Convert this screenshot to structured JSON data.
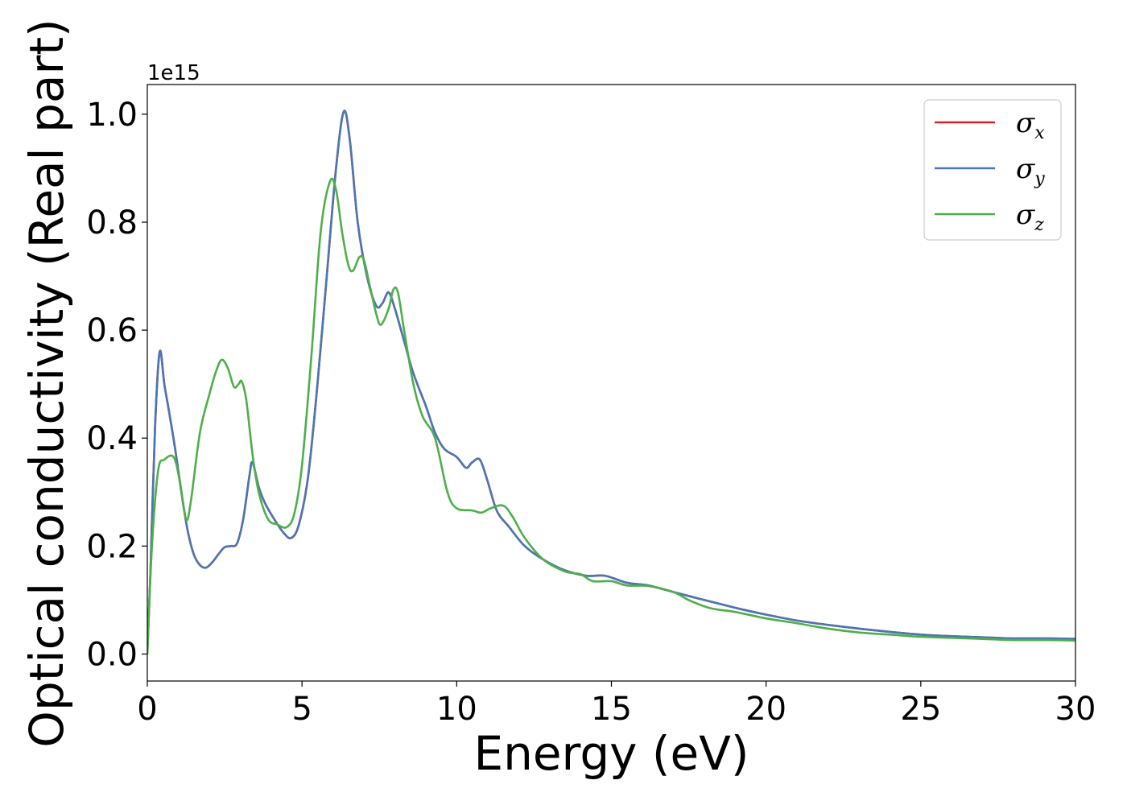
{
  "chart_data": {
    "type": "line",
    "title": "",
    "xlabel": "Energy (eV)",
    "ylabel": "Optical conductivity (Real part)",
    "y_offset_label": "1e15",
    "xlim": [
      0,
      30
    ],
    "ylim": [
      -0.05,
      1.055
    ],
    "xticks": [
      0,
      5,
      10,
      15,
      20,
      25,
      30
    ],
    "xtick_labels": [
      "0",
      "5",
      "10",
      "15",
      "20",
      "25",
      "30"
    ],
    "yticks": [
      0.0,
      0.2,
      0.4,
      0.6,
      0.8,
      1.0
    ],
    "ytick_labels": [
      "0.0",
      "0.2",
      "0.4",
      "0.6",
      "0.8",
      "1.0"
    ],
    "grid": false,
    "legend_position": "top-right",
    "series": [
      {
        "name": "σx",
        "legend_symbol": "σ",
        "legend_subscript": "x",
        "color": "#d62728",
        "points": [
          [
            0,
            0.0
          ],
          [
            0.1,
            0.15
          ],
          [
            0.25,
            0.42
          ],
          [
            0.4,
            0.56
          ],
          [
            0.55,
            0.5
          ],
          [
            0.7,
            0.45
          ],
          [
            0.9,
            0.38
          ],
          [
            1.1,
            0.3
          ],
          [
            1.3,
            0.23
          ],
          [
            1.5,
            0.185
          ],
          [
            1.7,
            0.165
          ],
          [
            1.9,
            0.16
          ],
          [
            2.1,
            0.17
          ],
          [
            2.3,
            0.185
          ],
          [
            2.5,
            0.198
          ],
          [
            2.7,
            0.2
          ],
          [
            2.9,
            0.205
          ],
          [
            3.1,
            0.25
          ],
          [
            3.3,
            0.33
          ],
          [
            3.4,
            0.355
          ],
          [
            3.6,
            0.31
          ],
          [
            3.8,
            0.28
          ],
          [
            4.1,
            0.25
          ],
          [
            4.4,
            0.225
          ],
          [
            4.65,
            0.215
          ],
          [
            4.9,
            0.24
          ],
          [
            5.2,
            0.33
          ],
          [
            5.5,
            0.5
          ],
          [
            5.8,
            0.7
          ],
          [
            6.1,
            0.9
          ],
          [
            6.35,
            1.005
          ],
          [
            6.55,
            0.95
          ],
          [
            6.8,
            0.8
          ],
          [
            7.1,
            0.7
          ],
          [
            7.4,
            0.645
          ],
          [
            7.6,
            0.65
          ],
          [
            7.8,
            0.67
          ],
          [
            8.0,
            0.64
          ],
          [
            8.3,
            0.58
          ],
          [
            8.6,
            0.52
          ],
          [
            9.0,
            0.46
          ],
          [
            9.3,
            0.41
          ],
          [
            9.6,
            0.38
          ],
          [
            10.0,
            0.365
          ],
          [
            10.3,
            0.345
          ],
          [
            10.5,
            0.355
          ],
          [
            10.75,
            0.36
          ],
          [
            11.0,
            0.32
          ],
          [
            11.3,
            0.265
          ],
          [
            11.7,
            0.235
          ],
          [
            12.2,
            0.2
          ],
          [
            12.8,
            0.175
          ],
          [
            13.5,
            0.155
          ],
          [
            14.2,
            0.145
          ],
          [
            14.8,
            0.145
          ],
          [
            15.5,
            0.132
          ],
          [
            16.2,
            0.127
          ],
          [
            17.0,
            0.115
          ],
          [
            17.8,
            0.103
          ],
          [
            18.5,
            0.093
          ],
          [
            19.2,
            0.083
          ],
          [
            20.0,
            0.073
          ],
          [
            21.0,
            0.062
          ],
          [
            22.0,
            0.054
          ],
          [
            23.0,
            0.047
          ],
          [
            24.0,
            0.041
          ],
          [
            25.0,
            0.036
          ],
          [
            26.0,
            0.033
          ],
          [
            27.0,
            0.031
          ],
          [
            28.0,
            0.029
          ],
          [
            29.0,
            0.029
          ],
          [
            30.0,
            0.028
          ]
        ]
      },
      {
        "name": "σy",
        "legend_symbol": "σ",
        "legend_subscript": "y",
        "color": "#4a77b4",
        "points": [
          [
            0,
            0.0
          ],
          [
            0.1,
            0.15
          ],
          [
            0.25,
            0.42
          ],
          [
            0.4,
            0.56
          ],
          [
            0.55,
            0.5
          ],
          [
            0.7,
            0.45
          ],
          [
            0.9,
            0.38
          ],
          [
            1.1,
            0.3
          ],
          [
            1.3,
            0.23
          ],
          [
            1.5,
            0.185
          ],
          [
            1.7,
            0.165
          ],
          [
            1.9,
            0.16
          ],
          [
            2.1,
            0.17
          ],
          [
            2.3,
            0.185
          ],
          [
            2.5,
            0.198
          ],
          [
            2.7,
            0.2
          ],
          [
            2.9,
            0.205
          ],
          [
            3.1,
            0.25
          ],
          [
            3.3,
            0.33
          ],
          [
            3.4,
            0.355
          ],
          [
            3.6,
            0.31
          ],
          [
            3.8,
            0.28
          ],
          [
            4.1,
            0.25
          ],
          [
            4.4,
            0.225
          ],
          [
            4.65,
            0.215
          ],
          [
            4.9,
            0.24
          ],
          [
            5.2,
            0.33
          ],
          [
            5.5,
            0.5
          ],
          [
            5.8,
            0.7
          ],
          [
            6.1,
            0.9
          ],
          [
            6.35,
            1.005
          ],
          [
            6.55,
            0.95
          ],
          [
            6.8,
            0.8
          ],
          [
            7.1,
            0.7
          ],
          [
            7.4,
            0.645
          ],
          [
            7.6,
            0.65
          ],
          [
            7.8,
            0.67
          ],
          [
            8.0,
            0.64
          ],
          [
            8.3,
            0.58
          ],
          [
            8.6,
            0.52
          ],
          [
            9.0,
            0.46
          ],
          [
            9.3,
            0.41
          ],
          [
            9.6,
            0.38
          ],
          [
            10.0,
            0.365
          ],
          [
            10.3,
            0.345
          ],
          [
            10.5,
            0.355
          ],
          [
            10.75,
            0.36
          ],
          [
            11.0,
            0.32
          ],
          [
            11.3,
            0.265
          ],
          [
            11.7,
            0.235
          ],
          [
            12.2,
            0.2
          ],
          [
            12.8,
            0.175
          ],
          [
            13.5,
            0.155
          ],
          [
            14.2,
            0.145
          ],
          [
            14.8,
            0.145
          ],
          [
            15.5,
            0.132
          ],
          [
            16.2,
            0.127
          ],
          [
            17.0,
            0.115
          ],
          [
            17.8,
            0.103
          ],
          [
            18.5,
            0.093
          ],
          [
            19.2,
            0.083
          ],
          [
            20.0,
            0.073
          ],
          [
            21.0,
            0.062
          ],
          [
            22.0,
            0.054
          ],
          [
            23.0,
            0.047
          ],
          [
            24.0,
            0.041
          ],
          [
            25.0,
            0.036
          ],
          [
            26.0,
            0.033
          ],
          [
            27.0,
            0.031
          ],
          [
            28.0,
            0.029
          ],
          [
            29.0,
            0.029
          ],
          [
            30.0,
            0.028
          ]
        ]
      },
      {
        "name": "σz",
        "legend_symbol": "σ",
        "legend_subscript": "z",
        "color": "#4daf4a",
        "points": [
          [
            0,
            0.0
          ],
          [
            0.15,
            0.2
          ],
          [
            0.35,
            0.34
          ],
          [
            0.55,
            0.36
          ],
          [
            0.85,
            0.365
          ],
          [
            1.05,
            0.32
          ],
          [
            1.25,
            0.25
          ],
          [
            1.4,
            0.28
          ],
          [
            1.7,
            0.41
          ],
          [
            2.0,
            0.48
          ],
          [
            2.2,
            0.52
          ],
          [
            2.4,
            0.545
          ],
          [
            2.6,
            0.53
          ],
          [
            2.8,
            0.495
          ],
          [
            2.95,
            0.5
          ],
          [
            3.05,
            0.505
          ],
          [
            3.2,
            0.47
          ],
          [
            3.4,
            0.37
          ],
          [
            3.6,
            0.3
          ],
          [
            3.9,
            0.25
          ],
          [
            4.2,
            0.24
          ],
          [
            4.5,
            0.235
          ],
          [
            4.75,
            0.26
          ],
          [
            5.0,
            0.35
          ],
          [
            5.3,
            0.55
          ],
          [
            5.6,
            0.78
          ],
          [
            5.9,
            0.875
          ],
          [
            6.1,
            0.86
          ],
          [
            6.3,
            0.78
          ],
          [
            6.5,
            0.72
          ],
          [
            6.65,
            0.71
          ],
          [
            6.85,
            0.735
          ],
          [
            7.0,
            0.73
          ],
          [
            7.2,
            0.68
          ],
          [
            7.4,
            0.63
          ],
          [
            7.55,
            0.61
          ],
          [
            7.8,
            0.64
          ],
          [
            7.95,
            0.675
          ],
          [
            8.1,
            0.67
          ],
          [
            8.3,
            0.6
          ],
          [
            8.6,
            0.5
          ],
          [
            8.9,
            0.44
          ],
          [
            9.3,
            0.4
          ],
          [
            9.7,
            0.3
          ],
          [
            10.0,
            0.27
          ],
          [
            10.5,
            0.266
          ],
          [
            10.8,
            0.262
          ],
          [
            11.1,
            0.27
          ],
          [
            11.5,
            0.275
          ],
          [
            11.8,
            0.255
          ],
          [
            12.2,
            0.215
          ],
          [
            12.8,
            0.175
          ],
          [
            13.5,
            0.153
          ],
          [
            14.0,
            0.148
          ],
          [
            14.4,
            0.135
          ],
          [
            15.0,
            0.135
          ],
          [
            15.5,
            0.127
          ],
          [
            16.2,
            0.126
          ],
          [
            17.0,
            0.115
          ],
          [
            17.5,
            0.1
          ],
          [
            18.2,
            0.085
          ],
          [
            19.0,
            0.078
          ],
          [
            20.0,
            0.066
          ],
          [
            21.0,
            0.057
          ],
          [
            22.0,
            0.047
          ],
          [
            23.0,
            0.04
          ],
          [
            24.0,
            0.036
          ],
          [
            25.0,
            0.032
          ],
          [
            26.0,
            0.03
          ],
          [
            27.0,
            0.028
          ],
          [
            28.0,
            0.026
          ],
          [
            29.0,
            0.026
          ],
          [
            30.0,
            0.025
          ]
        ]
      }
    ]
  }
}
